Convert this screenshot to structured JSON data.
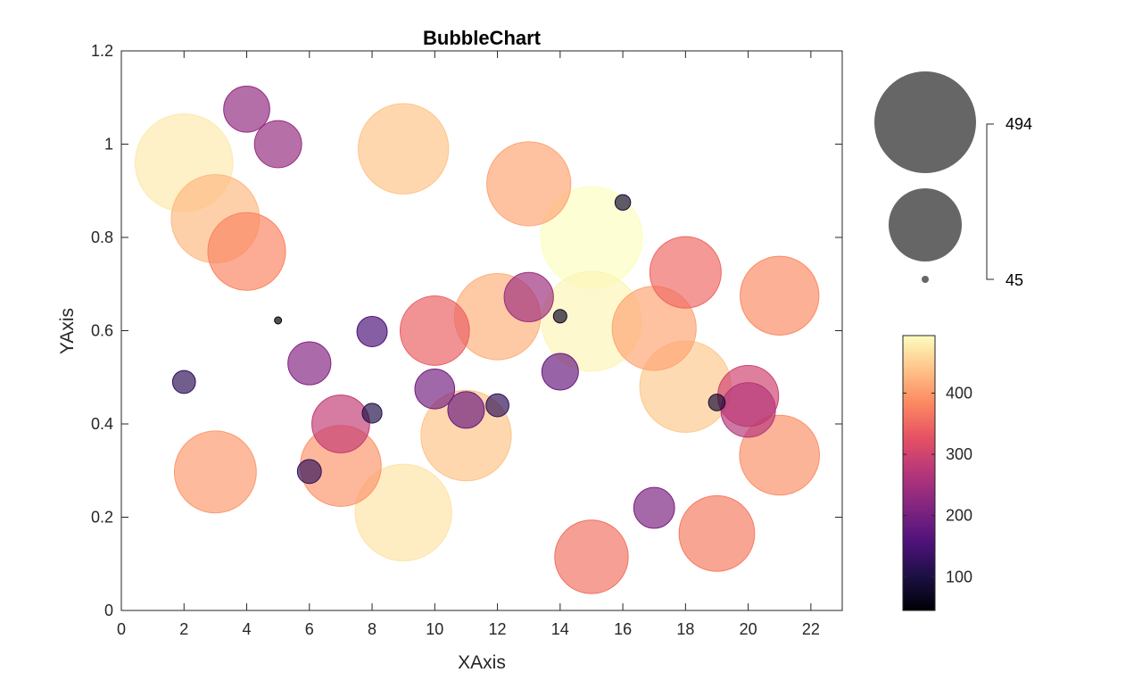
{
  "chart_data": {
    "type": "scatter",
    "subtype": "bubble",
    "title": "BubbleChart",
    "xlabel": "XAxis",
    "ylabel": "YAxis",
    "xlim": [
      0,
      23
    ],
    "ylim": [
      0,
      1.2
    ],
    "xticks": [
      "0",
      "2",
      "4",
      "6",
      "8",
      "10",
      "12",
      "14",
      "16",
      "18",
      "20",
      "22"
    ],
    "yticks": [
      "0",
      "0.2",
      "0.4",
      "0.6",
      "0.8",
      "1",
      "1.2"
    ],
    "grid": false,
    "size_legend": {
      "max_label": "494",
      "min_label": "45",
      "max_value": 494,
      "min_value": 45
    },
    "colorbar": {
      "colormap": "magma",
      "range": [
        45,
        494
      ],
      "ticks": [
        "100",
        "200",
        "300",
        "400"
      ]
    },
    "points": [
      {
        "x": 2,
        "y": 0.96,
        "size": 475
      },
      {
        "x": 3,
        "y": 0.84,
        "size": 430
      },
      {
        "x": 4,
        "y": 0.77,
        "size": 380
      },
      {
        "x": 4,
        "y": 1.075,
        "size": 230
      },
      {
        "x": 5,
        "y": 1.0,
        "size": 235
      },
      {
        "x": 9,
        "y": 0.99,
        "size": 440
      },
      {
        "x": 13,
        "y": 0.915,
        "size": 410
      },
      {
        "x": 16,
        "y": 0.875,
        "size": 85
      },
      {
        "x": 15,
        "y": 0.8,
        "size": 494
      },
      {
        "x": 18,
        "y": 0.725,
        "size": 350
      },
      {
        "x": 21,
        "y": 0.675,
        "size": 385
      },
      {
        "x": 5,
        "y": 0.622,
        "size": 45
      },
      {
        "x": 8,
        "y": 0.598,
        "size": 155
      },
      {
        "x": 10,
        "y": 0.6,
        "size": 340
      },
      {
        "x": 12,
        "y": 0.63,
        "size": 420
      },
      {
        "x": 13,
        "y": 0.672,
        "size": 245
      },
      {
        "x": 14,
        "y": 0.631,
        "size": 75
      },
      {
        "x": 15,
        "y": 0.62,
        "size": 485
      },
      {
        "x": 17,
        "y": 0.605,
        "size": 410
      },
      {
        "x": 2,
        "y": 0.49,
        "size": 120
      },
      {
        "x": 6,
        "y": 0.53,
        "size": 215
      },
      {
        "x": 10,
        "y": 0.475,
        "size": 200
      },
      {
        "x": 11,
        "y": 0.375,
        "size": 440
      },
      {
        "x": 11,
        "y": 0.43,
        "size": 185
      },
      {
        "x": 12,
        "y": 0.44,
        "size": 120
      },
      {
        "x": 14,
        "y": 0.512,
        "size": 185
      },
      {
        "x": 18,
        "y": 0.48,
        "size": 445
      },
      {
        "x": 19,
        "y": 0.446,
        "size": 90
      },
      {
        "x": 20,
        "y": 0.46,
        "size": 300
      },
      {
        "x": 20,
        "y": 0.43,
        "size": 270
      },
      {
        "x": 21,
        "y": 0.333,
        "size": 390
      },
      {
        "x": 7,
        "y": 0.4,
        "size": 285
      },
      {
        "x": 8,
        "y": 0.423,
        "size": 105
      },
      {
        "x": 7,
        "y": 0.31,
        "size": 395
      },
      {
        "x": 3,
        "y": 0.297,
        "size": 400
      },
      {
        "x": 6,
        "y": 0.298,
        "size": 125
      },
      {
        "x": 9,
        "y": 0.21,
        "size": 470
      },
      {
        "x": 17,
        "y": 0.22,
        "size": 205
      },
      {
        "x": 15,
        "y": 0.115,
        "size": 360
      },
      {
        "x": 19,
        "y": 0.165,
        "size": 370
      }
    ]
  }
}
